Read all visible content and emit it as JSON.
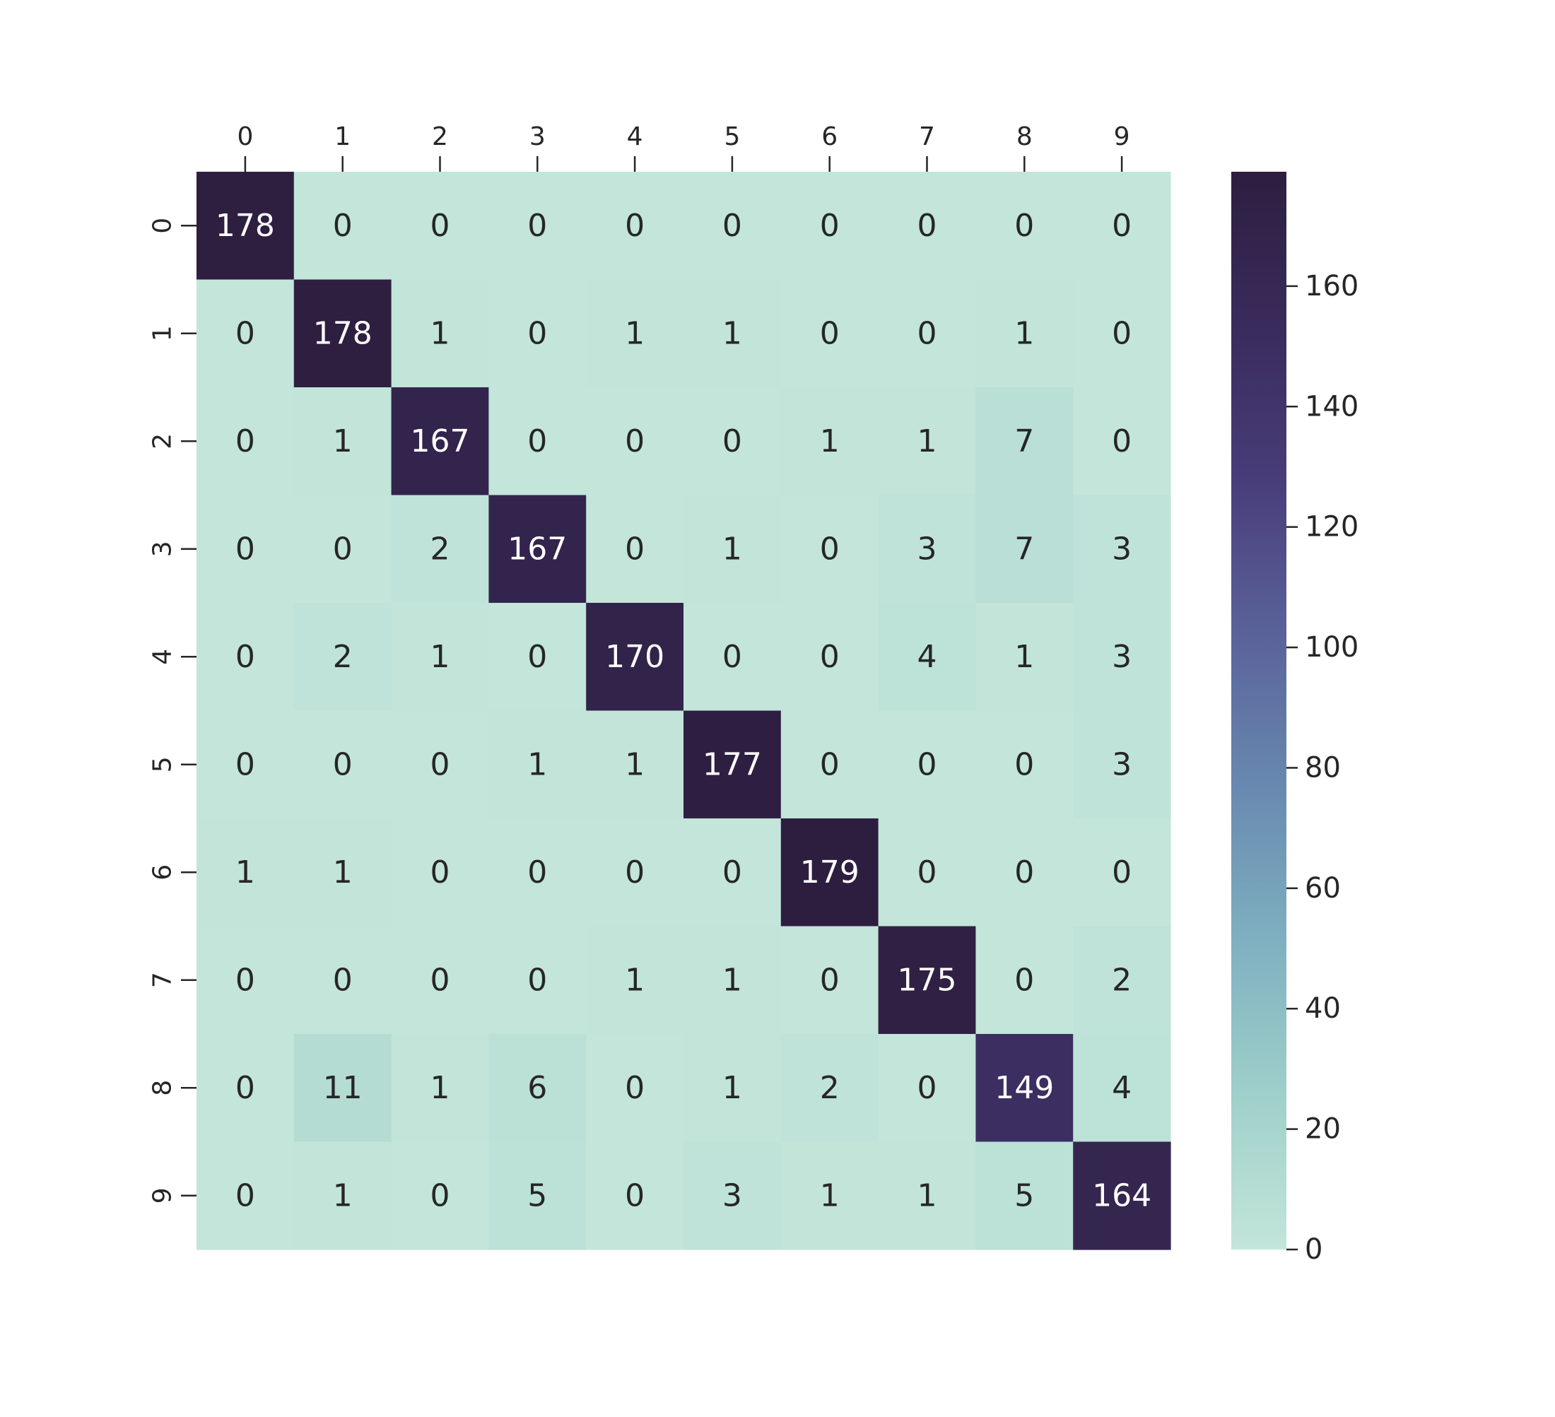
{
  "chart_data": {
    "type": "heatmap",
    "x_tick_position": "top",
    "x_categories": [
      "0",
      "1",
      "2",
      "3",
      "4",
      "5",
      "6",
      "7",
      "8",
      "9"
    ],
    "y_categories": [
      "0",
      "1",
      "2",
      "3",
      "4",
      "5",
      "6",
      "7",
      "8",
      "9"
    ],
    "matrix": [
      [
        178,
        0,
        0,
        0,
        0,
        0,
        0,
        0,
        0,
        0
      ],
      [
        0,
        178,
        1,
        0,
        1,
        1,
        0,
        0,
        1,
        0
      ],
      [
        0,
        1,
        167,
        0,
        0,
        0,
        1,
        1,
        7,
        0
      ],
      [
        0,
        0,
        2,
        167,
        0,
        1,
        0,
        3,
        7,
        3
      ],
      [
        0,
        2,
        1,
        0,
        170,
        0,
        0,
        4,
        1,
        3
      ],
      [
        0,
        0,
        0,
        1,
        1,
        177,
        0,
        0,
        0,
        3
      ],
      [
        1,
        1,
        0,
        0,
        0,
        0,
        179,
        0,
        0,
        0
      ],
      [
        0,
        0,
        0,
        0,
        1,
        1,
        0,
        175,
        0,
        2
      ],
      [
        0,
        11,
        1,
        6,
        0,
        1,
        2,
        0,
        149,
        4
      ],
      [
        0,
        1,
        0,
        5,
        0,
        3,
        1,
        1,
        5,
        164
      ]
    ],
    "annotations": true,
    "colorbar": {
      "range": [
        0,
        179
      ],
      "ticks": [
        0,
        20,
        40,
        60,
        80,
        100,
        120,
        140,
        160
      ],
      "tick_labels": [
        "0",
        "20",
        "40",
        "60",
        "80",
        "100",
        "120",
        "140",
        "160"
      ]
    },
    "colors": {
      "low": "#c3e5da",
      "stops": [
        "#c3e5da",
        "#9fd0ca",
        "#7fb0c0",
        "#6889b0",
        "#5a629a",
        "#483d79",
        "#3a2b5c",
        "#2d1e40"
      ],
      "text_light": "#ffffff",
      "text_dark": "#262626",
      "tick": "#262626"
    }
  }
}
